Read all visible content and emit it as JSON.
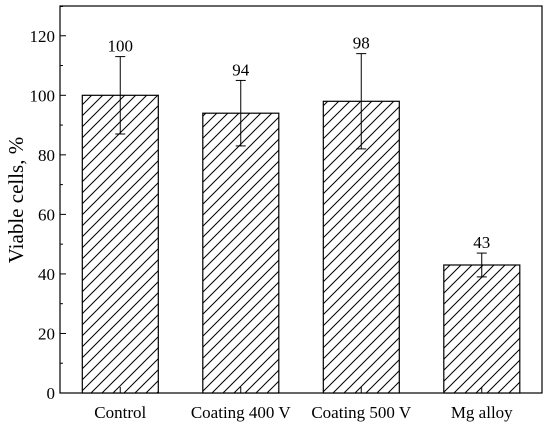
{
  "chart_data": {
    "type": "bar",
    "categories": [
      "Control",
      "Coating 400 V",
      "Coating 500 V",
      "Mg alloy"
    ],
    "values": [
      100,
      94,
      98,
      43
    ],
    "data_labels": [
      "100",
      "94",
      "98",
      "43"
    ],
    "error_bars": [
      13,
      11,
      16,
      4
    ],
    "ylabel": "Viable cells, %",
    "xlabel": "",
    "ylim": [
      0,
      130
    ],
    "yticks": [
      0,
      20,
      40,
      60,
      80,
      100,
      120
    ],
    "ytick_labels": [
      "0",
      "20",
      "40",
      "60",
      "80",
      "100",
      "120"
    ],
    "bar_fill": "hatched",
    "grid": false,
    "colors": {
      "bar_stroke": "#000000",
      "hatch": "#000000",
      "axis": "#000000"
    }
  }
}
